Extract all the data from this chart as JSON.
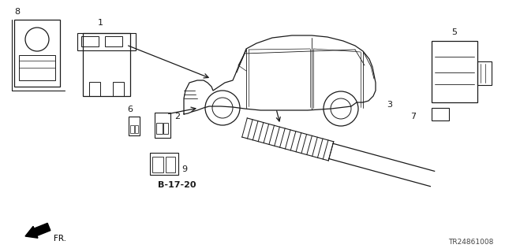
{
  "bg_color": "#ffffff",
  "line_color": "#1a1a1a",
  "part_number_text": "TR24861008",
  "diagram_code": "B-17-20",
  "fr_arrow_text": "FR.",
  "fig_w": 6.4,
  "fig_h": 3.2
}
